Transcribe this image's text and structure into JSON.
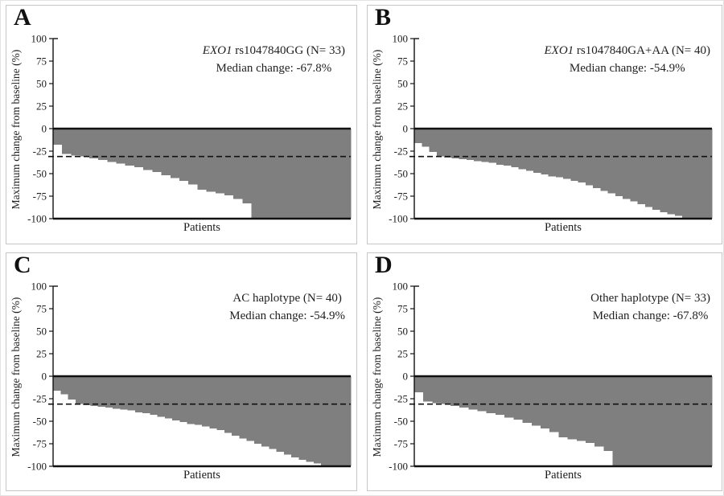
{
  "style": {
    "background": "#ffffff",
    "panel_border": "#c6c6c6",
    "bar_fill": "#7f7f7f",
    "axis_color": "#111111",
    "reference_line_color": "#111111"
  },
  "chart_data": [
    {
      "type": "bar",
      "subtype": "waterfall",
      "panel_label": "A",
      "title_italic": "EXO1",
      "title_regular": " rs1047840GG (N= 33)",
      "subtitle": "Median change: -67.8%",
      "n": 33,
      "median_change_pct": -67.8,
      "xlabel": "Patients",
      "ylabel": "Maximum change from baseline (%)",
      "ylim": [
        -100,
        100
      ],
      "y_ticks": [
        100,
        75,
        50,
        25,
        0,
        -25,
        -50,
        -75,
        -100
      ],
      "reference_line_y": -31,
      "grid": false,
      "legend": "none",
      "values": [
        -18,
        -28,
        -30,
        -31,
        -33,
        -35,
        -37,
        -39,
        -41,
        -43,
        -46,
        -48,
        -52,
        -55,
        -58,
        -62,
        -67.8,
        -70,
        -72,
        -74,
        -78,
        -83,
        -100,
        -100,
        -100,
        -100,
        -100,
        -100,
        -100,
        -100,
        -100,
        -100,
        -100
      ]
    },
    {
      "type": "bar",
      "subtype": "waterfall",
      "panel_label": "B",
      "title_italic": "EXO1",
      "title_regular": " rs1047840GA+AA (N= 40)",
      "subtitle": "Median change: -54.9%",
      "n": 40,
      "median_change_pct": -54.9,
      "xlabel": "Patients",
      "ylabel": "Maximum change from baseline (%)",
      "ylim": [
        -100,
        100
      ],
      "y_ticks": [
        100,
        75,
        50,
        25,
        0,
        -25,
        -50,
        -75,
        -100
      ],
      "reference_line_y": -31,
      "grid": false,
      "legend": "none",
      "values": [
        -16,
        -20,
        -26,
        -31,
        -32,
        -33,
        -34,
        -35,
        -36,
        -37,
        -38,
        -40,
        -41,
        -43,
        -45,
        -47,
        -49,
        -51,
        -53,
        -54,
        -55.8,
        -58,
        -60,
        -63,
        -66,
        -69,
        -72,
        -75,
        -78,
        -81,
        -84,
        -87,
        -90,
        -93,
        -95,
        -97,
        -100,
        -100,
        -100,
        -100
      ]
    },
    {
      "type": "bar",
      "subtype": "waterfall",
      "panel_label": "C",
      "title_italic": "",
      "title_regular": "AC haplotype (N= 40)",
      "subtitle": "Median change: -54.9%",
      "n": 40,
      "median_change_pct": -54.9,
      "xlabel": "Patients",
      "ylabel": "Maximum change from baseline (%)",
      "ylim": [
        -100,
        100
      ],
      "y_ticks": [
        100,
        75,
        50,
        25,
        0,
        -25,
        -50,
        -75,
        -100
      ],
      "reference_line_y": -31,
      "grid": false,
      "legend": "none",
      "values": [
        -16,
        -20,
        -26,
        -31,
        -32,
        -33,
        -34,
        -35,
        -36,
        -37,
        -38,
        -40,
        -41,
        -43,
        -45,
        -47,
        -49,
        -51,
        -53,
        -54,
        -55.8,
        -58,
        -60,
        -63,
        -66,
        -69,
        -72,
        -75,
        -78,
        -81,
        -84,
        -87,
        -90,
        -93,
        -95,
        -97,
        -100,
        -100,
        -100,
        -100
      ]
    },
    {
      "type": "bar",
      "subtype": "waterfall",
      "panel_label": "D",
      "title_italic": "",
      "title_regular": "Other haplotype (N= 33)",
      "subtitle": "Median change: -67.8%",
      "n": 33,
      "median_change_pct": -67.8,
      "xlabel": "Patients",
      "ylabel": "Maximum change from baseline (%)",
      "ylim": [
        -100,
        100
      ],
      "y_ticks": [
        100,
        75,
        50,
        25,
        0,
        -25,
        -50,
        -75,
        -100
      ],
      "reference_line_y": -31,
      "grid": false,
      "legend": "none",
      "values": [
        -18,
        -28,
        -30,
        -31,
        -33,
        -35,
        -37,
        -39,
        -41,
        -43,
        -46,
        -48,
        -52,
        -55,
        -58,
        -62,
        -67.8,
        -70,
        -72,
        -74,
        -78,
        -83,
        -100,
        -100,
        -100,
        -100,
        -100,
        -100,
        -100,
        -100,
        -100,
        -100,
        -100
      ]
    }
  ]
}
